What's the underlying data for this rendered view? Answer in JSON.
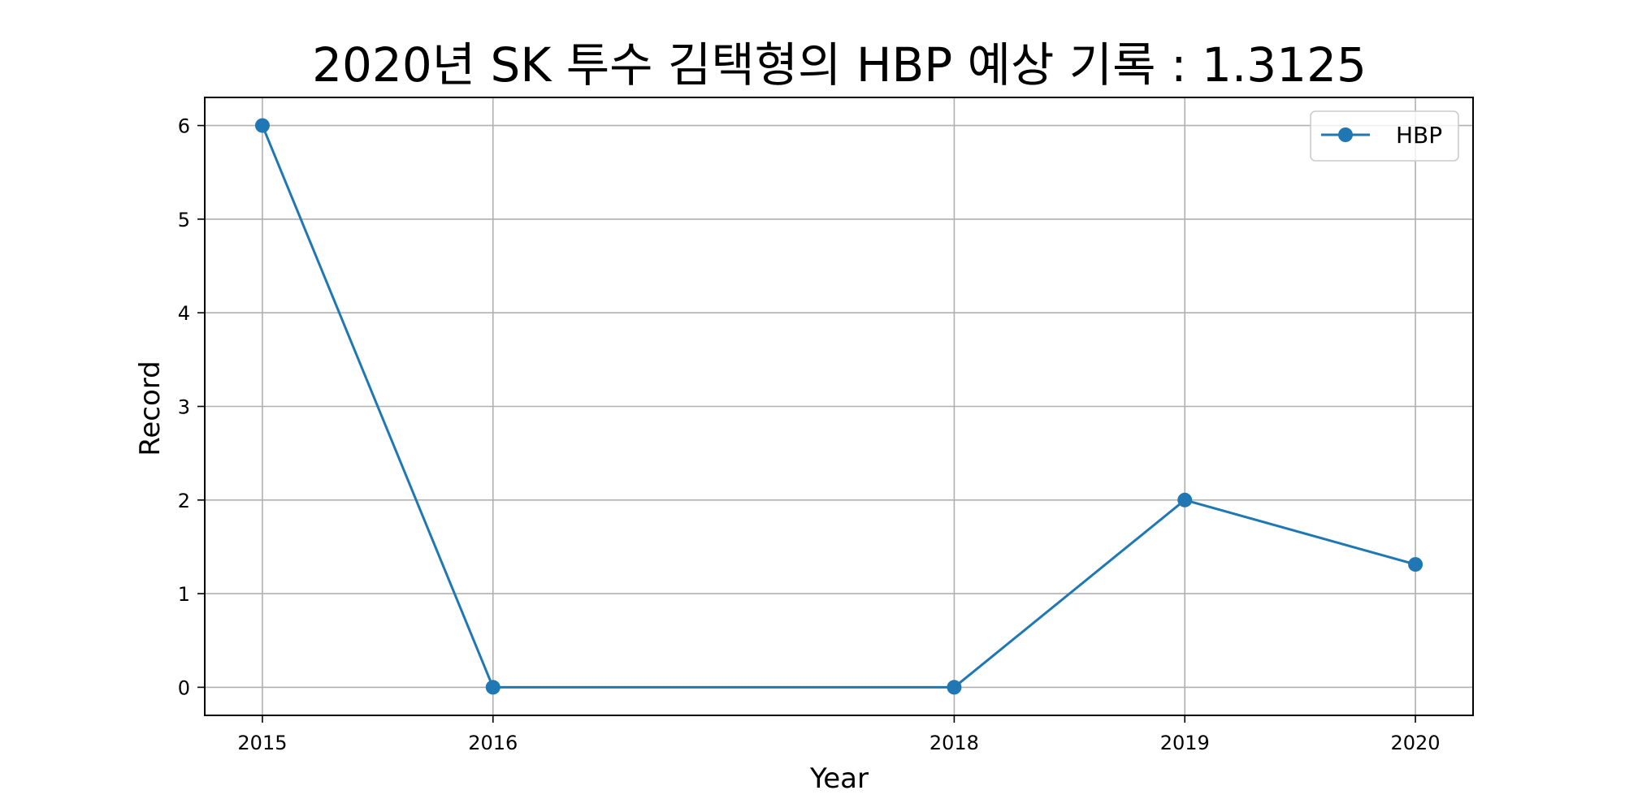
{
  "chart_data": {
    "type": "line",
    "title": "2020년 SK 투수 김택형의 HBP 예상 기록 : 1.3125",
    "xlabel": "Year",
    "ylabel": "Record",
    "x": [
      2015,
      2016,
      2018,
      2019,
      2020
    ],
    "x_tick_labels": [
      "2015",
      "2016",
      "2018",
      "2019",
      "2020"
    ],
    "y_ticks": [
      0,
      1,
      2,
      3,
      4,
      5,
      6
    ],
    "y_tick_labels": [
      "0",
      "1",
      "2",
      "3",
      "4",
      "5",
      "6"
    ],
    "xlim": [
      2014.75,
      2020.25
    ],
    "ylim": [
      -0.3,
      6.3
    ],
    "series": [
      {
        "name": "HBP",
        "values": [
          6,
          0,
          0,
          2,
          1.3125
        ],
        "color": "#1f77b4"
      }
    ],
    "grid": true,
    "legend_position": "top-right"
  }
}
